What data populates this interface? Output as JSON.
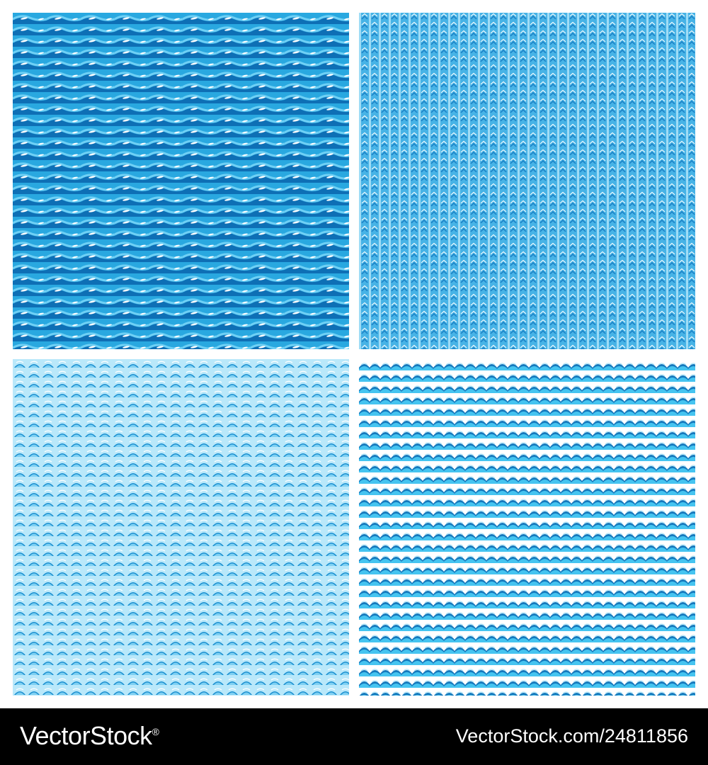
{
  "tiles": [
    {
      "id": "tile-tl",
      "pattern": "horizontal-waves",
      "colors": {
        "background": "#29a8e0",
        "dark": "#0e6fb5",
        "light": "#6fd0f5",
        "highlight": "#ffffff"
      }
    },
    {
      "id": "tile-tr",
      "pattern": "vertical-chevrons",
      "colors": {
        "background": "#47b3e6",
        "dark": "#1a7fc4",
        "light": "#9fdcf6",
        "highlight": "#ffffff"
      }
    },
    {
      "id": "tile-bl",
      "pattern": "scale-arcs",
      "colors": {
        "background": "#7fd0f2",
        "dark": "#1a8fd0",
        "light": "#b9e8fa",
        "highlight": "#ffffff"
      }
    },
    {
      "id": "tile-br",
      "pattern": "scalloped-rows",
      "colors": {
        "background": "#ffffff",
        "dark": "#1579bd",
        "light": "#45c4f0",
        "highlight": "#b3e6f9"
      }
    }
  ],
  "footer": {
    "brand": "VectorStock",
    "brand_mark": "®",
    "image_id": "VectorStock.com/24811856"
  }
}
